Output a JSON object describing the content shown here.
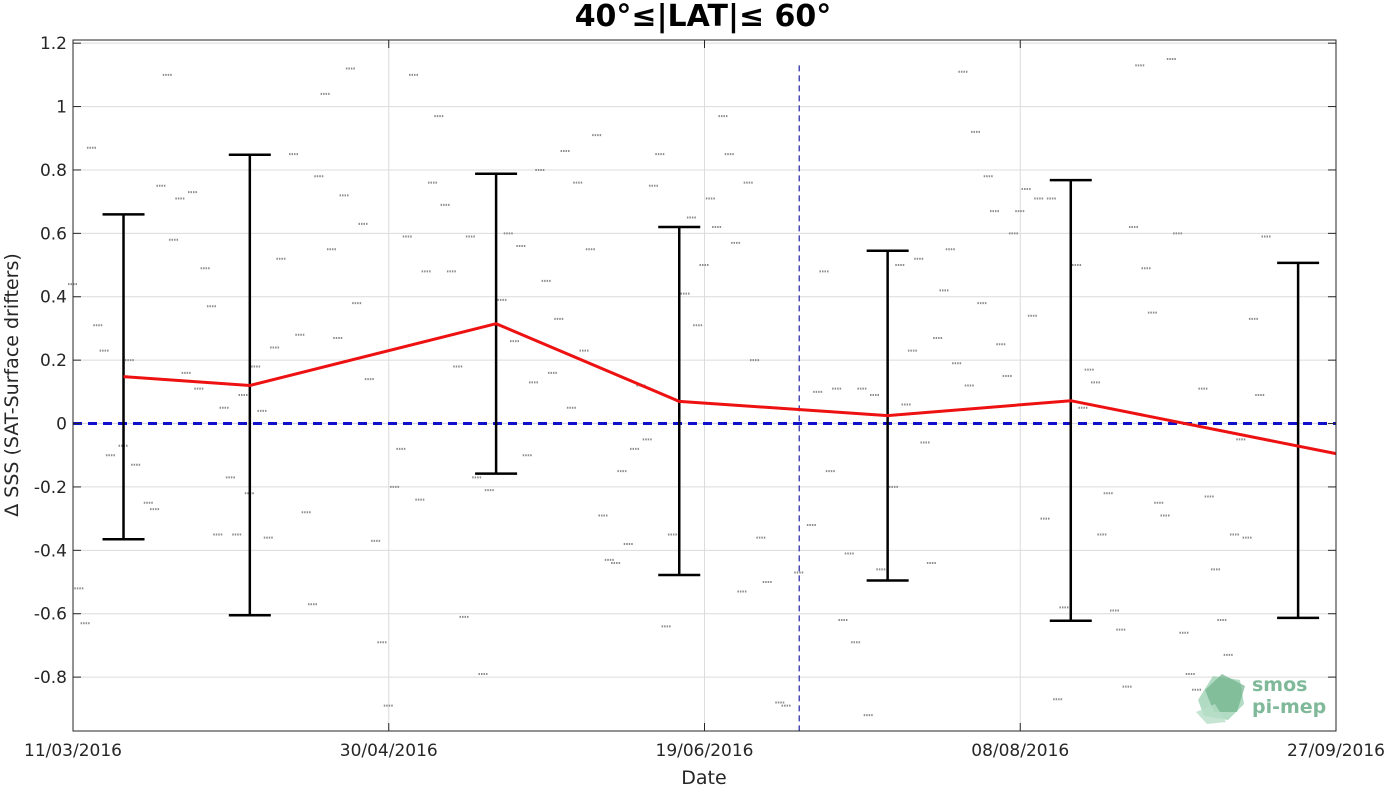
{
  "chart_data": {
    "type": "scatter",
    "title": "40°≤|LAT|≤ 60°",
    "xlabel": "Date",
    "ylabel": "Δ SSS (SAT-Surface drifters)",
    "xlim": [
      "2016-03-11",
      "2016-09-27"
    ],
    "ylim": [
      -0.97,
      1.21
    ],
    "x_ticks": [
      "11/03/2016",
      "30/04/2016",
      "19/06/2016",
      "08/08/2016",
      "27/09/2016"
    ],
    "y_ticks": [
      "1.2",
      "1",
      "0.8",
      "0.6",
      "0.4",
      "0.2",
      "0",
      "-0.2",
      "-0.4",
      "-0.6",
      "-0.8"
    ],
    "grid": true,
    "colors": {
      "mean_line": "#ee1111",
      "zero_line": "#1111cc",
      "error_bars": "#000000",
      "points": "#8c8c8c",
      "marker_line": "#3333aa"
    },
    "vline_date": "2016-07-04",
    "zero_value": 0,
    "mean_series": {
      "name": "",
      "x": [
        "2016-03-19",
        "2016-04-08",
        "2016-05-17",
        "2016-06-15",
        "2016-07-18",
        "2016-08-16",
        "2016-09-27"
      ],
      "y": [
        0.148,
        0.12,
        0.315,
        0.07,
        0.025,
        0.072,
        -0.095
      ]
    },
    "error_bars": [
      {
        "x": "2016-03-19",
        "low": -0.365,
        "high": 0.66
      },
      {
        "x": "2016-04-08",
        "low": -0.605,
        "high": 0.848
      },
      {
        "x": "2016-05-17",
        "low": -0.158,
        "high": 0.788
      },
      {
        "x": "2016-06-15",
        "low": -0.478,
        "high": 0.62
      },
      {
        "x": "2016-07-18",
        "low": -0.495,
        "high": 0.545
      },
      {
        "x": "2016-08-16",
        "low": -0.622,
        "high": 0.768
      },
      {
        "x": "2016-09-21",
        "low": -0.613,
        "high": 0.507
      }
    ],
    "scatter_clusters": [
      [
        "2016-03-11",
        0.44
      ],
      [
        "2016-03-12",
        -0.52
      ],
      [
        "2016-03-13",
        -0.63
      ],
      [
        "2016-03-14",
        0.87
      ],
      [
        "2016-03-15",
        0.31
      ],
      [
        "2016-03-16",
        0.23
      ],
      [
        "2016-03-17",
        -0.1
      ],
      [
        "2016-03-19",
        -0.07
      ],
      [
        "2016-03-20",
        0.2
      ],
      [
        "2016-03-21",
        -0.13
      ],
      [
        "2016-03-23",
        -0.25
      ],
      [
        "2016-03-24",
        -0.27
      ],
      [
        "2016-03-25",
        0.75
      ],
      [
        "2016-03-26",
        1.1
      ],
      [
        "2016-03-27",
        0.58
      ],
      [
        "2016-03-28",
        0.71
      ],
      [
        "2016-03-29",
        0.16
      ],
      [
        "2016-03-30",
        0.73
      ],
      [
        "2016-03-31",
        0.11
      ],
      [
        "2016-04-01",
        0.49
      ],
      [
        "2016-04-02",
        0.37
      ],
      [
        "2016-04-03",
        -0.35
      ],
      [
        "2016-04-04",
        0.05
      ],
      [
        "2016-04-05",
        -0.17
      ],
      [
        "2016-04-06",
        -0.35
      ],
      [
        "2016-04-07",
        0.09
      ],
      [
        "2016-04-08",
        -0.22
      ],
      [
        "2016-04-09",
        0.18
      ],
      [
        "2016-04-10",
        0.04
      ],
      [
        "2016-04-11",
        -0.36
      ],
      [
        "2016-04-12",
        0.24
      ],
      [
        "2016-04-13",
        0.52
      ],
      [
        "2016-04-15",
        0.85
      ],
      [
        "2016-04-16",
        0.28
      ],
      [
        "2016-04-17",
        -0.28
      ],
      [
        "2016-04-18",
        -0.57
      ],
      [
        "2016-04-19",
        0.78
      ],
      [
        "2016-04-20",
        1.04
      ],
      [
        "2016-04-21",
        0.55
      ],
      [
        "2016-04-22",
        0.27
      ],
      [
        "2016-04-23",
        0.72
      ],
      [
        "2016-04-24",
        1.12
      ],
      [
        "2016-04-25",
        0.38
      ],
      [
        "2016-04-26",
        0.63
      ],
      [
        "2016-04-27",
        0.14
      ],
      [
        "2016-04-28",
        -0.37
      ],
      [
        "2016-04-29",
        -0.69
      ],
      [
        "2016-04-30",
        -0.89
      ],
      [
        "2016-05-01",
        -0.2
      ],
      [
        "2016-05-02",
        -0.08
      ],
      [
        "2016-05-03",
        0.59
      ],
      [
        "2016-05-04",
        1.1
      ],
      [
        "2016-05-05",
        -0.24
      ],
      [
        "2016-05-06",
        0.48
      ],
      [
        "2016-05-07",
        0.76
      ],
      [
        "2016-05-08",
        0.97
      ],
      [
        "2016-05-09",
        0.69
      ],
      [
        "2016-05-10",
        0.48
      ],
      [
        "2016-05-11",
        0.18
      ],
      [
        "2016-05-12",
        -0.61
      ],
      [
        "2016-05-13",
        0.59
      ],
      [
        "2016-05-14",
        -0.17
      ],
      [
        "2016-05-15",
        -0.79
      ],
      [
        "2016-05-16",
        -0.21
      ],
      [
        "2016-05-18",
        0.39
      ],
      [
        "2016-05-19",
        0.6
      ],
      [
        "2016-05-20",
        0.26
      ],
      [
        "2016-05-21",
        0.56
      ],
      [
        "2016-05-22",
        -0.1
      ],
      [
        "2016-05-23",
        0.13
      ],
      [
        "2016-05-24",
        0.8
      ],
      [
        "2016-05-25",
        0.45
      ],
      [
        "2016-05-26",
        0.16
      ],
      [
        "2016-05-27",
        0.33
      ],
      [
        "2016-05-28",
        0.86
      ],
      [
        "2016-05-29",
        0.05
      ],
      [
        "2016-05-30",
        0.76
      ],
      [
        "2016-05-31",
        0.23
      ],
      [
        "2016-06-01",
        0.55
      ],
      [
        "2016-06-02",
        0.91
      ],
      [
        "2016-06-03",
        -0.29
      ],
      [
        "2016-06-04",
        -0.43
      ],
      [
        "2016-06-05",
        -0.44
      ],
      [
        "2016-06-06",
        -0.15
      ],
      [
        "2016-06-07",
        -0.38
      ],
      [
        "2016-06-08",
        -0.08
      ],
      [
        "2016-06-09",
        0.12
      ],
      [
        "2016-06-10",
        -0.05
      ],
      [
        "2016-06-11",
        0.75
      ],
      [
        "2016-06-12",
        0.85
      ],
      [
        "2016-06-13",
        -0.64
      ],
      [
        "2016-06-14",
        -0.35
      ],
      [
        "2016-06-16",
        0.41
      ],
      [
        "2016-06-17",
        0.65
      ],
      [
        "2016-06-18",
        0.31
      ],
      [
        "2016-06-19",
        0.5
      ],
      [
        "2016-06-20",
        0.71
      ],
      [
        "2016-06-21",
        0.62
      ],
      [
        "2016-06-22",
        0.97
      ],
      [
        "2016-06-23",
        0.85
      ],
      [
        "2016-06-24",
        0.57
      ],
      [
        "2016-06-25",
        -0.53
      ],
      [
        "2016-06-26",
        0.76
      ],
      [
        "2016-06-27",
        0.2
      ],
      [
        "2016-06-28",
        -0.36
      ],
      [
        "2016-06-29",
        -0.5
      ],
      [
        "2016-07-01",
        -0.88
      ],
      [
        "2016-07-02",
        -0.89
      ],
      [
        "2016-07-04",
        -0.47
      ],
      [
        "2016-07-06",
        -0.32
      ],
      [
        "2016-07-07",
        0.1
      ],
      [
        "2016-07-08",
        0.48
      ],
      [
        "2016-07-09",
        -0.15
      ],
      [
        "2016-07-10",
        0.11
      ],
      [
        "2016-07-11",
        -0.62
      ],
      [
        "2016-07-12",
        -0.41
      ],
      [
        "2016-07-13",
        -0.69
      ],
      [
        "2016-07-14",
        0.11
      ],
      [
        "2016-07-15",
        -0.92
      ],
      [
        "2016-07-16",
        0.09
      ],
      [
        "2016-07-17",
        -0.46
      ],
      [
        "2016-07-19",
        -0.2
      ],
      [
        "2016-07-20",
        0.5
      ],
      [
        "2016-07-21",
        0.06
      ],
      [
        "2016-07-22",
        0.23
      ],
      [
        "2016-07-23",
        0.52
      ],
      [
        "2016-07-24",
        -0.06
      ],
      [
        "2016-07-25",
        -0.44
      ],
      [
        "2016-07-26",
        0.27
      ],
      [
        "2016-07-27",
        0.42
      ],
      [
        "2016-07-28",
        0.55
      ],
      [
        "2016-07-29",
        0.19
      ],
      [
        "2016-07-30",
        1.11
      ],
      [
        "2016-07-31",
        0.12
      ],
      [
        "2016-08-01",
        0.92
      ],
      [
        "2016-08-02",
        0.38
      ],
      [
        "2016-08-03",
        0.78
      ],
      [
        "2016-08-04",
        0.67
      ],
      [
        "2016-08-05",
        0.25
      ],
      [
        "2016-08-06",
        0.15
      ],
      [
        "2016-08-07",
        0.6
      ],
      [
        "2016-08-08",
        0.67
      ],
      [
        "2016-08-09",
        0.74
      ],
      [
        "2016-08-10",
        0.34
      ],
      [
        "2016-08-11",
        0.71
      ],
      [
        "2016-08-12",
        -0.3
      ],
      [
        "2016-08-13",
        0.71
      ],
      [
        "2016-08-14",
        -0.87
      ],
      [
        "2016-08-15",
        -0.58
      ],
      [
        "2016-08-17",
        0.5
      ],
      [
        "2016-08-18",
        0.05
      ],
      [
        "2016-08-19",
        0.17
      ],
      [
        "2016-08-20",
        0.13
      ],
      [
        "2016-08-21",
        -0.35
      ],
      [
        "2016-08-22",
        -0.22
      ],
      [
        "2016-08-23",
        -0.59
      ],
      [
        "2016-08-24",
        -0.65
      ],
      [
        "2016-08-25",
        -0.83
      ],
      [
        "2016-08-26",
        0.62
      ],
      [
        "2016-08-27",
        1.13
      ],
      [
        "2016-08-28",
        0.49
      ],
      [
        "2016-08-29",
        0.35
      ],
      [
        "2016-08-30",
        -0.25
      ],
      [
        "2016-08-31",
        -0.29
      ],
      [
        "2016-09-01",
        1.15
      ],
      [
        "2016-09-02",
        0.6
      ],
      [
        "2016-09-03",
        -0.66
      ],
      [
        "2016-09-04",
        -0.79
      ],
      [
        "2016-09-05",
        -0.84
      ],
      [
        "2016-09-06",
        0.11
      ],
      [
        "2016-09-07",
        -0.23
      ],
      [
        "2016-09-08",
        -0.46
      ],
      [
        "2016-09-09",
        -0.62
      ],
      [
        "2016-09-10",
        -0.73
      ],
      [
        "2016-09-11",
        -0.35
      ],
      [
        "2016-09-12",
        -0.05
      ],
      [
        "2016-09-13",
        -0.36
      ],
      [
        "2016-09-14",
        0.33
      ],
      [
        "2016-09-15",
        0.09
      ],
      [
        "2016-09-16",
        0.59
      ]
    ]
  },
  "watermark": {
    "line1": "smos",
    "line2": "pi-mep"
  }
}
